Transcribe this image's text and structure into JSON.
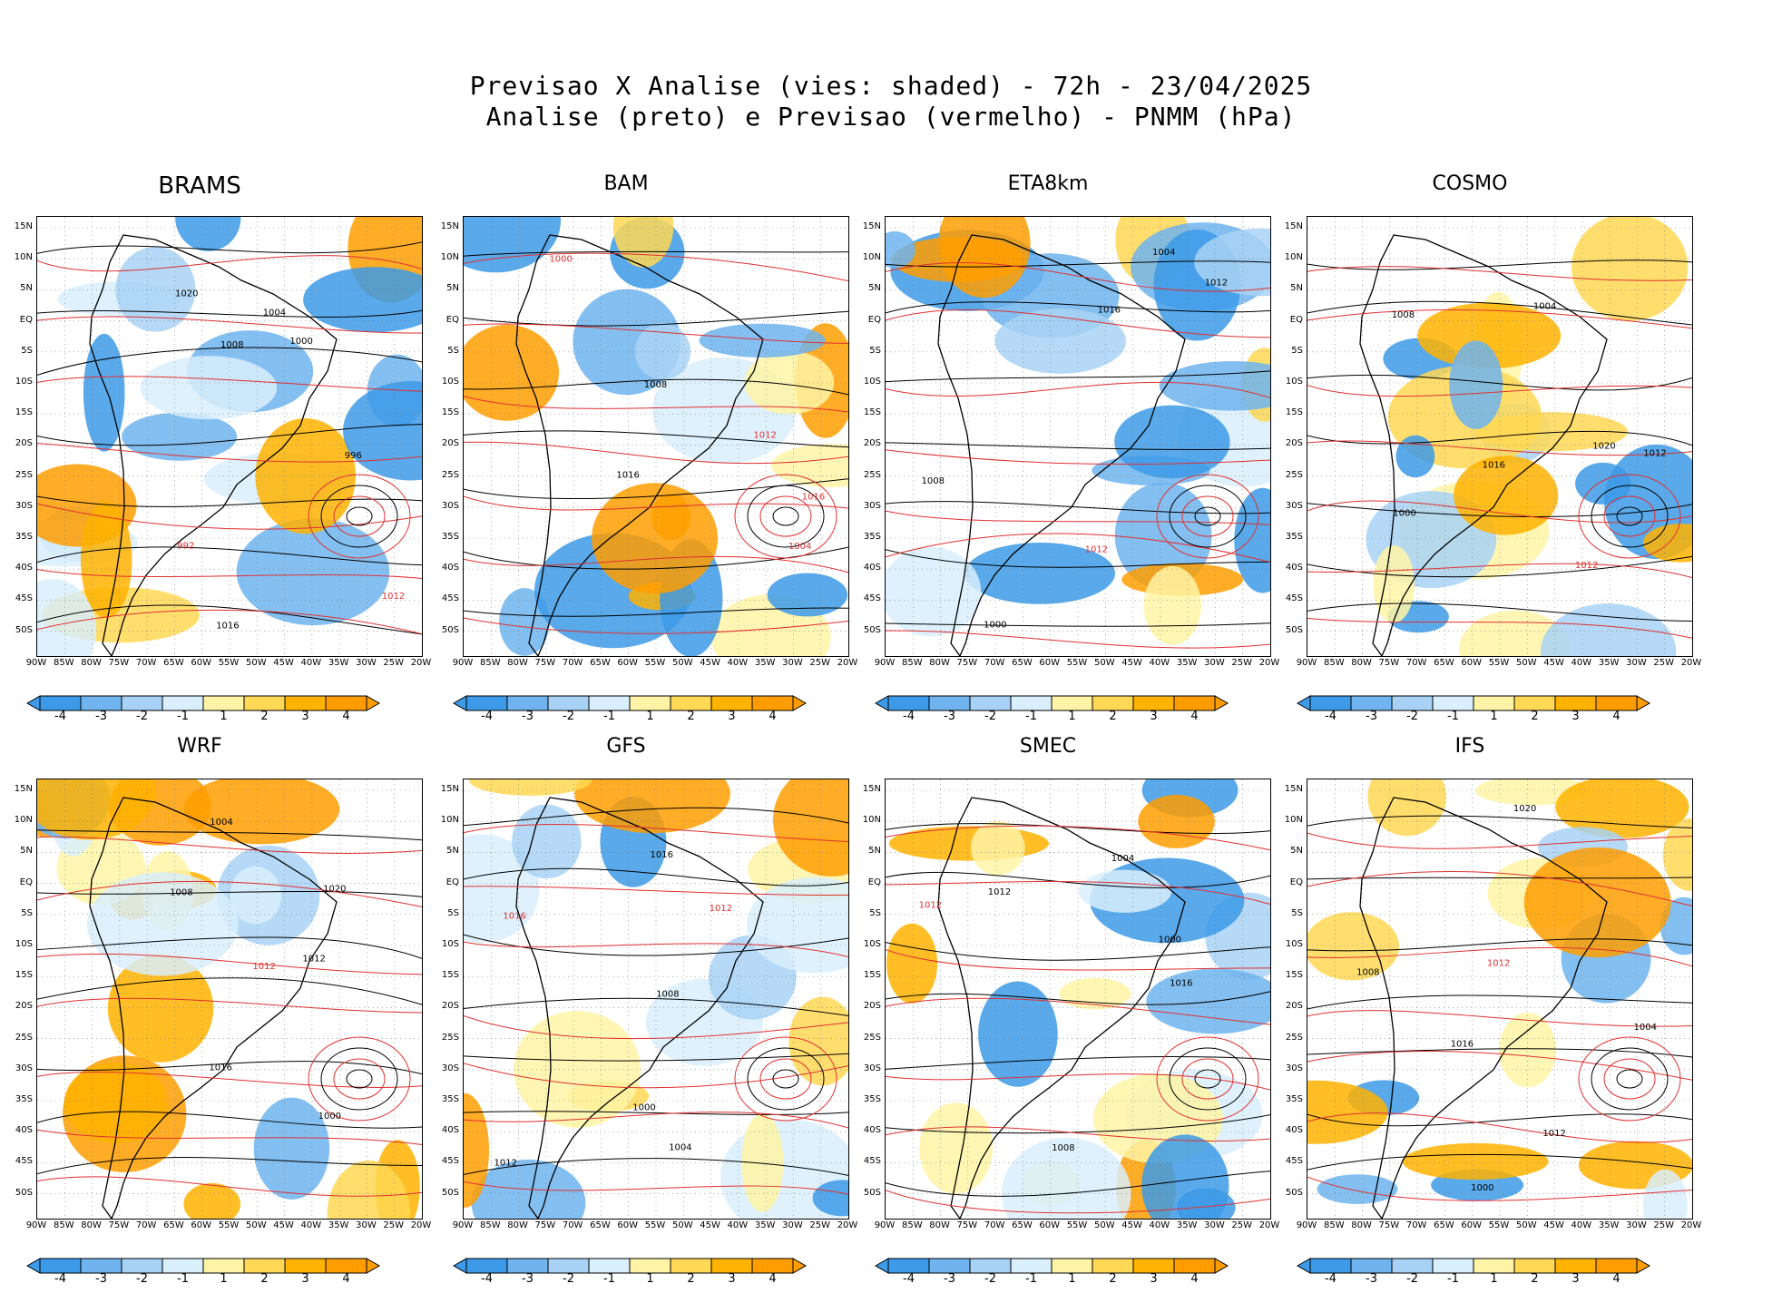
{
  "header": {
    "title_line1": "Previsao X Analise (vies: shaded) - 72h - 23/04/2025",
    "title_line2": "Analise (preto) e Previsao (vermelho) - PNMM (hPa)"
  },
  "axes": {
    "lat_labels": [
      "15N",
      "10N",
      "5N",
      "EQ",
      "5S",
      "10S",
      "15S",
      "20S",
      "25S",
      "30S",
      "35S",
      "40S",
      "45S",
      "50S"
    ],
    "lon_labels": [
      "90W",
      "85W",
      "80W",
      "75W",
      "70W",
      "65W",
      "60W",
      "55W",
      "50W",
      "45W",
      "40W",
      "35W",
      "30W",
      "25W",
      "20W"
    ]
  },
  "colorbar": {
    "labels": [
      "-4",
      "-3",
      "-2",
      "-1",
      "1",
      "2",
      "3",
      "4"
    ],
    "colors": [
      "#3c9ae8",
      "#6fb4ee",
      "#a8d2f5",
      "#d9effc",
      "#ffffff",
      "#fff4a6",
      "#ffd855",
      "#ffb300",
      "#ff9d00"
    ]
  },
  "panels": [
    {
      "title": "BRAMS",
      "contours": [
        {
          "t": "1008",
          "c": "k"
        },
        {
          "t": "1012",
          "c": "r"
        },
        {
          "t": "1016",
          "c": "k"
        },
        {
          "t": "1020",
          "c": "k"
        },
        {
          "t": "1004",
          "c": "k"
        },
        {
          "t": "1000",
          "c": "k"
        },
        {
          "t": "996",
          "c": "k"
        },
        {
          "t": "992",
          "c": "r"
        }
      ]
    },
    {
      "title": "BAM",
      "contours": [
        {
          "t": "1016",
          "c": "k"
        },
        {
          "t": "1012",
          "c": "r"
        },
        {
          "t": "1008",
          "c": "k"
        },
        {
          "t": "1004",
          "c": "r"
        },
        {
          "t": "1000",
          "c": "r"
        },
        {
          "t": "1016",
          "c": "r"
        }
      ]
    },
    {
      "title": "ETA8km",
      "contours": [
        {
          "t": "1012",
          "c": "k"
        },
        {
          "t": "1016",
          "c": "k"
        },
        {
          "t": "1008",
          "c": "k"
        },
        {
          "t": "1004",
          "c": "k"
        },
        {
          "t": "1000",
          "c": "k"
        },
        {
          "t": "1012",
          "c": "r"
        }
      ]
    },
    {
      "title": "COSMO",
      "contours": [
        {
          "t": "1012",
          "c": "k"
        },
        {
          "t": "1008",
          "c": "k"
        },
        {
          "t": "1016",
          "c": "k"
        },
        {
          "t": "1020",
          "c": "k"
        },
        {
          "t": "1004",
          "c": "k"
        },
        {
          "t": "1000",
          "c": "k"
        },
        {
          "t": "1012",
          "c": "r"
        }
      ]
    },
    {
      "title": "WRF",
      "contours": [
        {
          "t": "1016",
          "c": "k"
        },
        {
          "t": "1012",
          "c": "k"
        },
        {
          "t": "1008",
          "c": "k"
        },
        {
          "t": "1020",
          "c": "k"
        },
        {
          "t": "1004",
          "c": "k"
        },
        {
          "t": "1000",
          "c": "k"
        },
        {
          "t": "1012",
          "c": "r"
        }
      ]
    },
    {
      "title": "GFS",
      "contours": [
        {
          "t": "1016",
          "c": "k"
        },
        {
          "t": "1012",
          "c": "k"
        },
        {
          "t": "1008",
          "c": "k"
        },
        {
          "t": "1004",
          "c": "k"
        },
        {
          "t": "1000",
          "c": "k"
        },
        {
          "t": "1012",
          "c": "r"
        },
        {
          "t": "1016",
          "c": "r"
        }
      ]
    },
    {
      "title": "SMEC",
      "contours": [
        {
          "t": "1016",
          "c": "k"
        },
        {
          "t": "1012",
          "c": "k"
        },
        {
          "t": "1008",
          "c": "k"
        },
        {
          "t": "1004",
          "c": "k"
        },
        {
          "t": "1000",
          "c": "k"
        },
        {
          "t": "1012",
          "c": "r"
        }
      ]
    },
    {
      "title": "IFS",
      "contours": [
        {
          "t": "1016",
          "c": "k"
        },
        {
          "t": "1012",
          "c": "k"
        },
        {
          "t": "1008",
          "c": "k"
        },
        {
          "t": "1004",
          "c": "k"
        },
        {
          "t": "1000",
          "c": "k"
        },
        {
          "t": "1020",
          "c": "k"
        },
        {
          "t": "1012",
          "c": "r"
        }
      ]
    }
  ]
}
